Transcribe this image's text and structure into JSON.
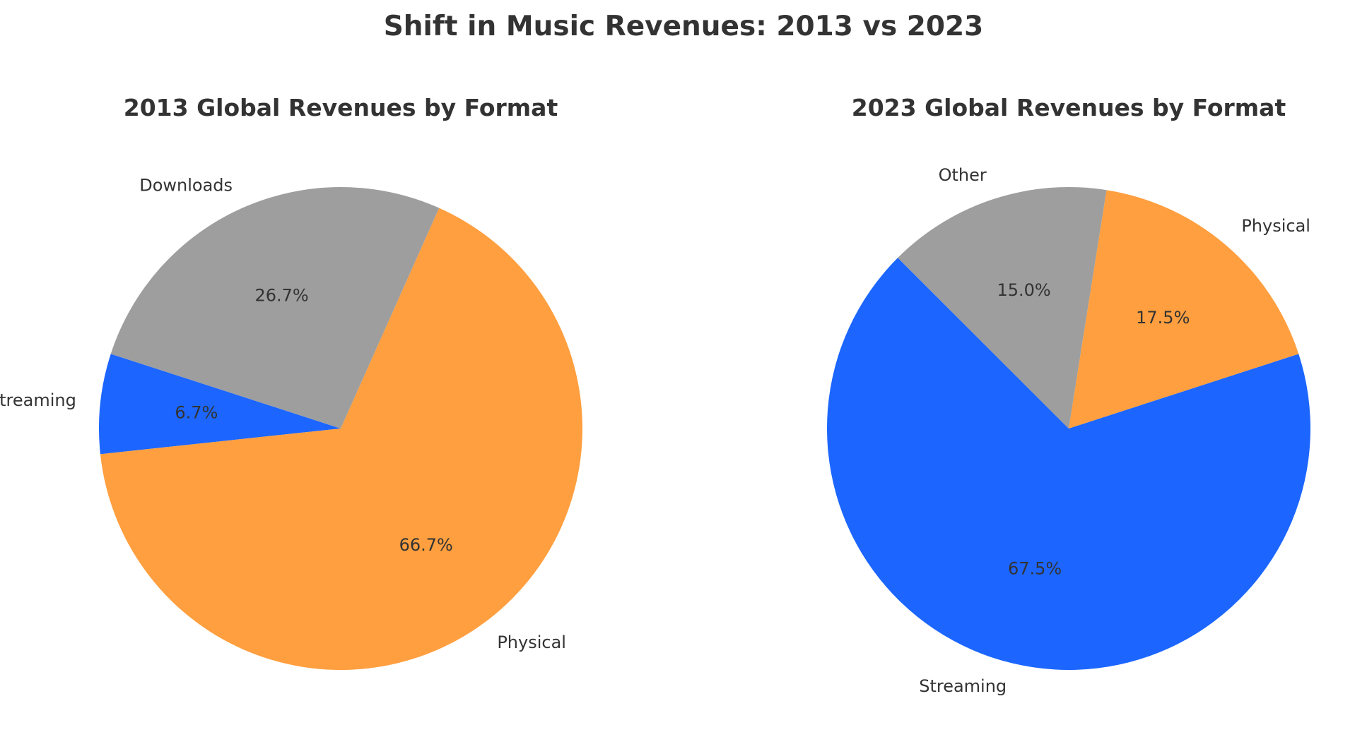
{
  "figure": {
    "title": "Shift in Music Revenues: 2013 vs 2023"
  },
  "chart_data": [
    {
      "type": "pie",
      "title": "2013 Global Revenues by Format",
      "start_angle": 162,
      "direction": "counterclockwise",
      "slices": [
        {
          "label": "Streaming",
          "value": 6.7,
          "pct_label": "6.7%",
          "color": "#1c66ff"
        },
        {
          "label": "Physical",
          "value": 66.7,
          "pct_label": "66.7%",
          "color": "#ff9f3f"
        },
        {
          "label": "Downloads",
          "value": 26.7,
          "pct_label": "26.7%",
          "color": "#9e9e9e"
        }
      ]
    },
    {
      "type": "pie",
      "title": "2023 Global Revenues by Format",
      "start_angle": 135,
      "direction": "counterclockwise",
      "slices": [
        {
          "label": "Streaming",
          "value": 67.5,
          "pct_label": "67.5%",
          "color": "#1c66ff"
        },
        {
          "label": "Physical",
          "value": 17.5,
          "pct_label": "17.5%",
          "color": "#ff9f3f"
        },
        {
          "label": "Other",
          "value": 15.0,
          "pct_label": "15.0%",
          "color": "#9e9e9e"
        }
      ]
    }
  ]
}
